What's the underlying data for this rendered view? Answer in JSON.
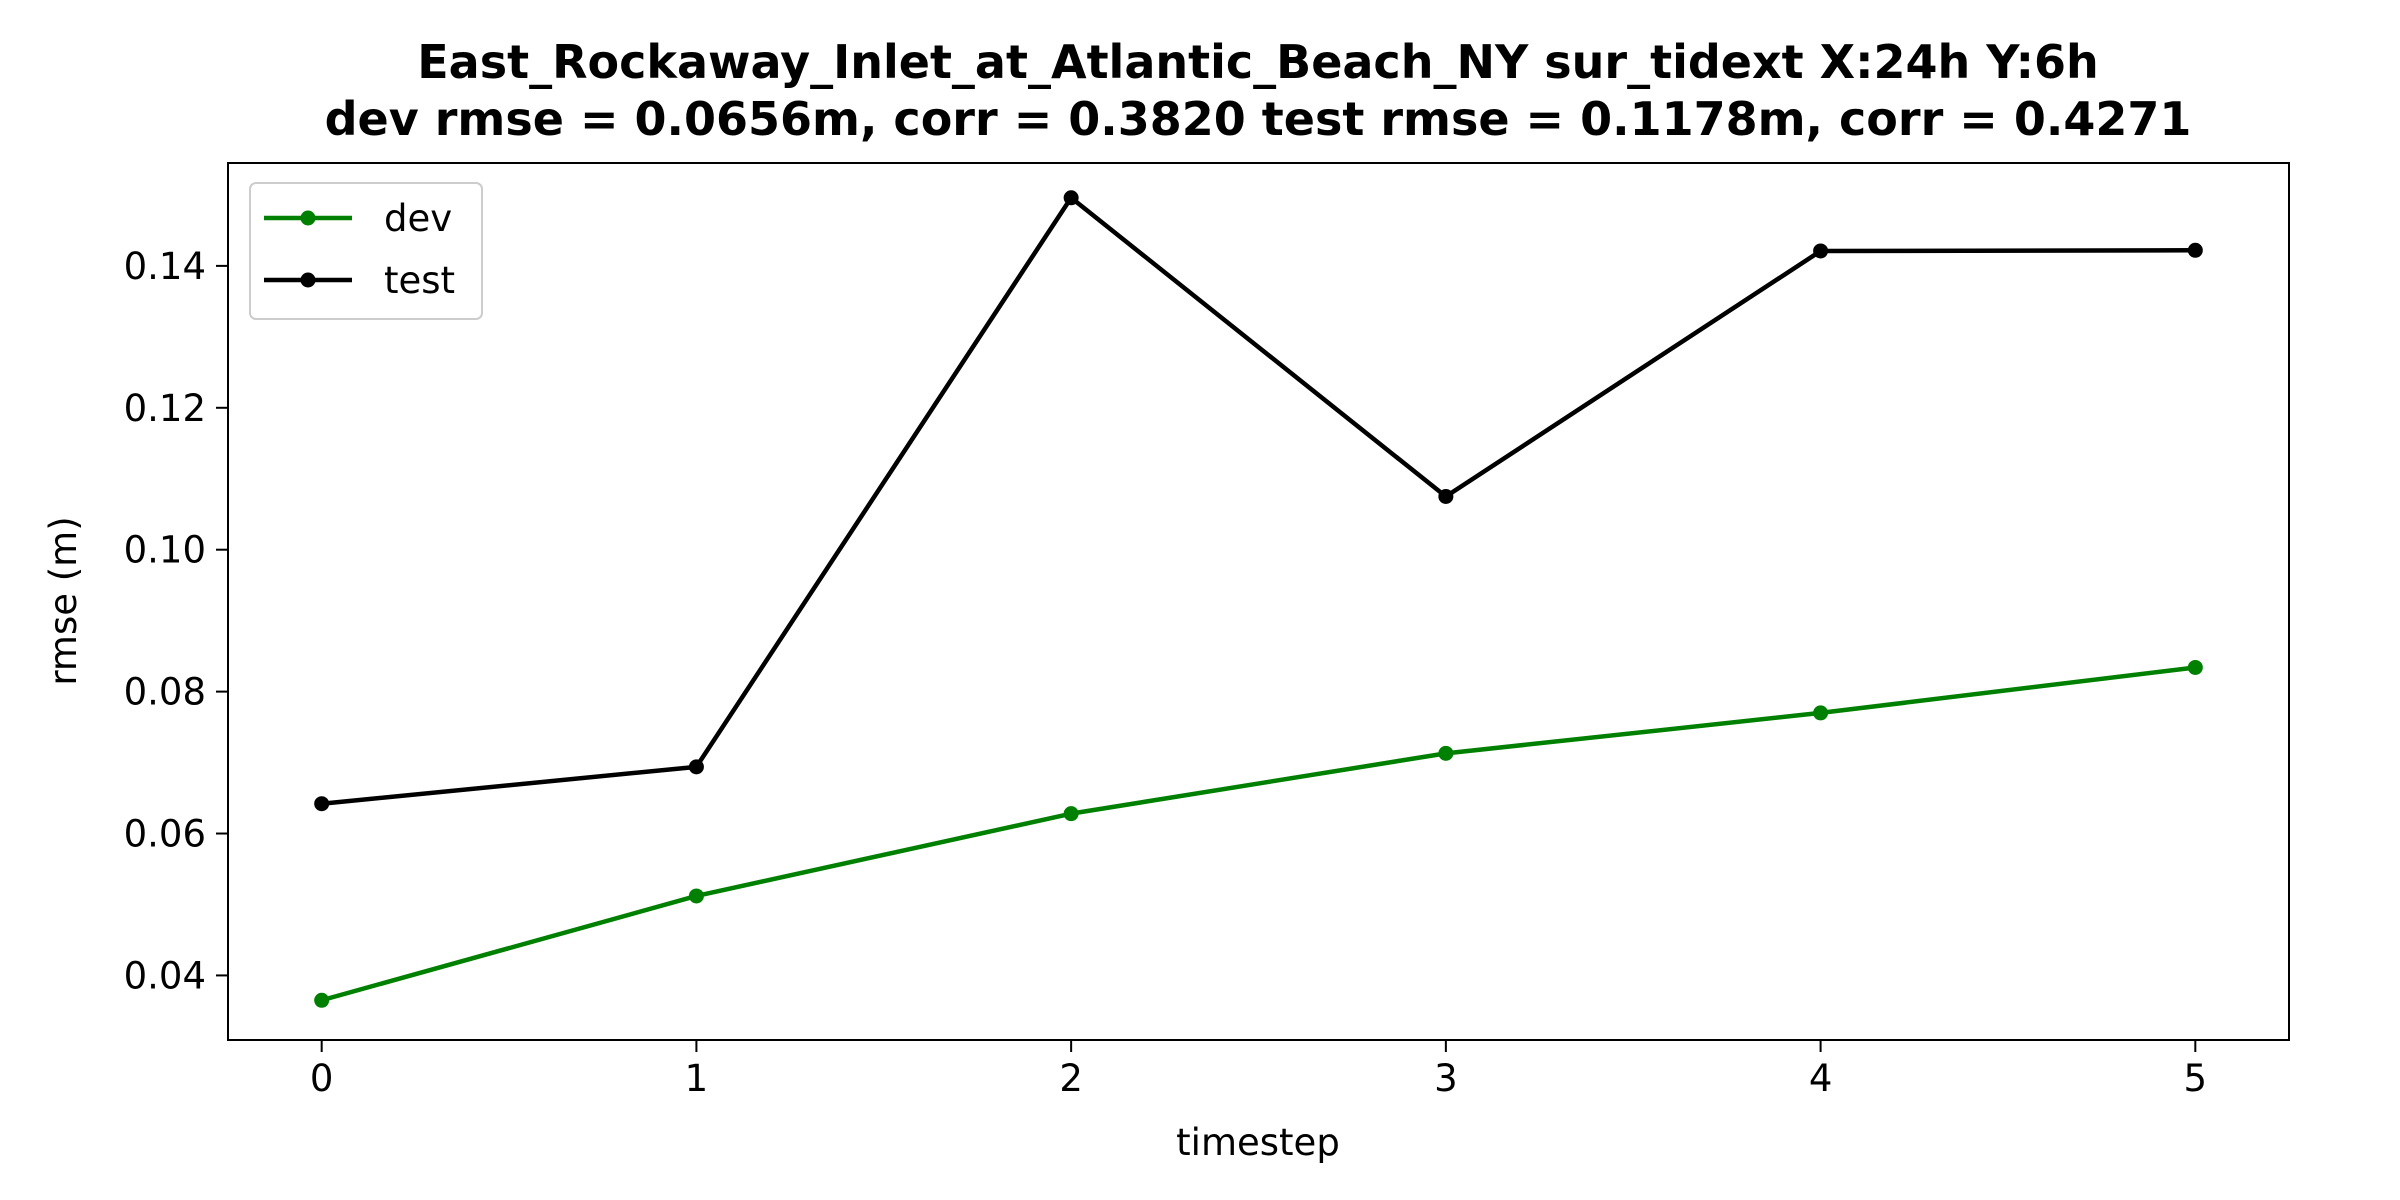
{
  "chart_data": {
    "type": "line",
    "title": "East_Rockaway_Inlet_at_Atlantic_Beach_NY   sur_tidext   X:24h   Y:6h",
    "subtitle": "dev rmse = 0.0656m, corr = 0.3820   test rmse = 0.1178m, corr = 0.4271",
    "xlabel": "timestep",
    "ylabel": "rmse (m)",
    "x": [
      0,
      1,
      2,
      3,
      4,
      5
    ],
    "x_ticks": [
      "0",
      "1",
      "2",
      "3",
      "4",
      "5"
    ],
    "y_ticks": [
      "0.04",
      "0.06",
      "0.08",
      "0.10",
      "0.12",
      "0.14"
    ],
    "xlim": [
      -0.25,
      5.25
    ],
    "ylim": [
      0.0309,
      0.1545
    ],
    "grid": false,
    "legend_position": "upper-left",
    "series": [
      {
        "name": "dev",
        "color": "#008000",
        "values": [
          0.0365,
          0.0512,
          0.0628,
          0.0713,
          0.077,
          0.0834
        ]
      },
      {
        "name": "test",
        "color": "#000000",
        "values": [
          0.0642,
          0.0694,
          0.1496,
          0.1075,
          0.1421,
          0.1422
        ]
      }
    ]
  }
}
